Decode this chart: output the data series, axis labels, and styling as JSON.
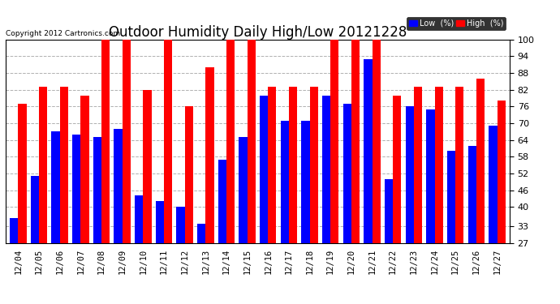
{
  "title": "Outdoor Humidity Daily High/Low 20121228",
  "copyright": "Copyright 2012 Cartronics.com",
  "dates": [
    "12/04",
    "12/05",
    "12/06",
    "12/07",
    "12/08",
    "12/09",
    "12/10",
    "12/11",
    "12/12",
    "12/13",
    "12/14",
    "12/15",
    "12/16",
    "12/17",
    "12/18",
    "12/19",
    "12/20",
    "12/21",
    "12/22",
    "12/23",
    "12/24",
    "12/25",
    "12/26",
    "12/27"
  ],
  "low": [
    36,
    51,
    67,
    66,
    65,
    68,
    44,
    42,
    40,
    34,
    57,
    65,
    80,
    71,
    71,
    80,
    77,
    93,
    50,
    76,
    75,
    60,
    62,
    69
  ],
  "high": [
    77,
    83,
    83,
    80,
    100,
    100,
    82,
    100,
    76,
    90,
    100,
    100,
    83,
    83,
    83,
    100,
    100,
    100,
    80,
    83,
    83,
    83,
    86,
    78
  ],
  "low_color": "#0000ff",
  "high_color": "#ff0000",
  "bg_color": "#ffffff",
  "grid_color": "#b0b0b0",
  "yticks": [
    27,
    33,
    40,
    46,
    52,
    58,
    64,
    70,
    76,
    82,
    88,
    94,
    100
  ],
  "ymin": 27,
  "ymax": 100,
  "title_fontsize": 12,
  "bar_width": 0.4,
  "legend_low_label": "Low  (%)",
  "legend_high_label": "High  (%)"
}
